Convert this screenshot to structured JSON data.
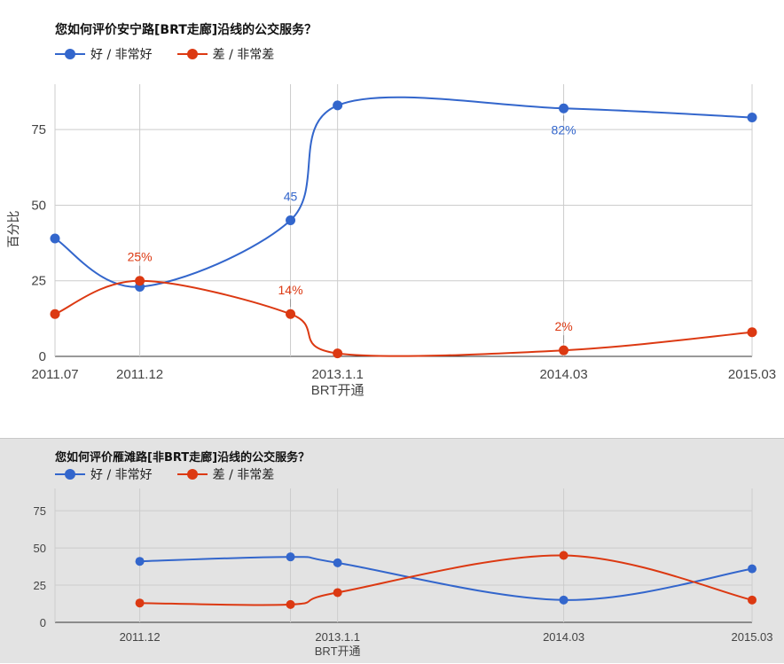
{
  "chart_data": [
    {
      "type": "line",
      "title": "您如何评价安宁路[BRT走廊]沿线的公交服务？",
      "xlabel": "BRT开通",
      "ylabel": "百分比",
      "categories": [
        "2011.07",
        "2011.12",
        "",
        "2013.1.1",
        "2014.03",
        "2015.03"
      ],
      "x_positions": [
        2011.5,
        2011.95,
        2012.75,
        2013.0,
        2014.2,
        2015.2
      ],
      "xlim": [
        2011.5,
        2015.2
      ],
      "ylim": [
        0,
        90
      ],
      "yticks": [
        0,
        25,
        50,
        75
      ],
      "grid": true,
      "legend_position": "top-left",
      "series": [
        {
          "name": "好 / 非常好",
          "color": "#3366cc",
          "values": [
            39,
            23,
            45,
            83,
            82,
            79
          ],
          "labels": [
            "",
            "",
            "45",
            "",
            "82%",
            ""
          ],
          "label_positions": [
            "",
            "",
            "above",
            "",
            "below",
            ""
          ]
        },
        {
          "name": "差 / 非常差",
          "color": "#dc3912",
          "values": [
            14,
            25,
            14,
            1,
            2,
            8
          ],
          "labels": [
            "",
            "25%",
            "14%",
            "",
            "2%",
            ""
          ],
          "label_positions": [
            "",
            "above",
            "above",
            "",
            "above",
            ""
          ]
        }
      ]
    },
    {
      "type": "line",
      "title": "您如何评价雁滩路[非BRT走廊]沿线的公交服务？",
      "xlabel": "BRT开通",
      "ylabel": "",
      "categories": [
        "2011.12",
        "",
        "2013.1.1",
        "2014.03",
        "2015.03"
      ],
      "x_positions": [
        2011.95,
        2012.75,
        2013.0,
        2014.2,
        2015.2
      ],
      "xlim": [
        2011.5,
        2015.2
      ],
      "ylim": [
        0,
        90
      ],
      "yticks": [
        0,
        25,
        50,
        75
      ],
      "grid": true,
      "legend_position": "top-left",
      "series": [
        {
          "name": "好 / 非常好",
          "color": "#3366cc",
          "values": [
            41,
            44,
            40,
            15,
            36
          ],
          "labels": [
            "",
            "",
            "",
            "",
            ""
          ],
          "label_positions": [
            "",
            "",
            "",
            "",
            ""
          ]
        },
        {
          "name": "差 / 非常差",
          "color": "#dc3912",
          "values": [
            13,
            12,
            20,
            45,
            15
          ],
          "labels": [
            "",
            "",
            "",
            "",
            ""
          ],
          "label_positions": [
            "",
            "",
            "",
            "",
            ""
          ]
        }
      ]
    }
  ]
}
